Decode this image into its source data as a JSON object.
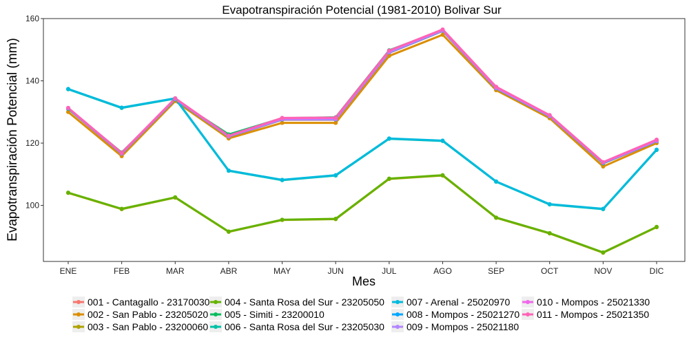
{
  "chart_data": {
    "type": "line",
    "title": "Evapotranspiración Potencial (1981-2010)  Bolivar Sur",
    "xlabel": "Mes",
    "ylabel": "Evapotranspiración Potencial  (mm)",
    "categories": [
      "ENE",
      "FEB",
      "MAR",
      "ABR",
      "MAY",
      "JUN",
      "JUL",
      "AGO",
      "SEP",
      "OCT",
      "NOV",
      "DIC"
    ],
    "ylim": [
      82,
      160
    ],
    "yticks": [
      100,
      120,
      140,
      160
    ],
    "grid": false,
    "legend_position": "bottom",
    "series": [
      {
        "name": "001 - Cantagallo - 23170030",
        "color": "#F8766D",
        "values": [
          131.0,
          116.5,
          134.0,
          122.0,
          127.5,
          127.5,
          149.0,
          156.0,
          137.5,
          128.5,
          113.5,
          120.5
        ]
      },
      {
        "name": "002 - San Pablo - 23205020",
        "color": "#DB8E00",
        "values": [
          130.0,
          115.8,
          133.5,
          121.5,
          126.5,
          126.5,
          148.0,
          154.8,
          137.0,
          128.0,
          112.5,
          120.0
        ]
      },
      {
        "name": "003 - San Pablo - 23200060",
        "color": "#AEA200",
        "values": [
          104.0,
          98.8,
          102.5,
          91.5,
          95.3,
          95.6,
          108.5,
          109.6,
          96.0,
          91.0,
          84.8,
          93.0
        ]
      },
      {
        "name": "004 - Santa Rosa del Sur - 23205050",
        "color": "#64B200",
        "values": [
          104.1,
          98.9,
          102.6,
          91.6,
          95.4,
          95.7,
          108.6,
          109.7,
          96.1,
          91.1,
          84.9,
          93.1
        ]
      },
      {
        "name": "005 - Simiti - 23200010",
        "color": "#00BD5C",
        "values": [
          131.0,
          117.0,
          134.0,
          122.8,
          128.0,
          128.3,
          149.8,
          156.3,
          138.0,
          128.8,
          113.5,
          121.0
        ]
      },
      {
        "name": "006 - Santa Rosa del Sur - 23205030",
        "color": "#00C1A7",
        "values": [
          137.3,
          131.3,
          134.3,
          111.1,
          108.1,
          109.6,
          121.4,
          120.7,
          107.6,
          100.3,
          98.8,
          117.8
        ]
      },
      {
        "name": "007 - Arenal - 25020970",
        "color": "#00BADE",
        "values": [
          137.4,
          131.4,
          134.4,
          111.2,
          108.2,
          109.7,
          121.5,
          120.8,
          107.7,
          100.4,
          98.9,
          117.9
        ]
      },
      {
        "name": "008 - Mompos - 25021270",
        "color": "#00A6FF",
        "values": [
          131.1,
          116.6,
          134.1,
          122.1,
          127.6,
          127.6,
          149.1,
          156.1,
          137.6,
          128.6,
          113.6,
          120.6
        ]
      },
      {
        "name": "009 - Mompos - 25021180",
        "color": "#B385FF",
        "values": [
          131.2,
          116.7,
          134.2,
          122.2,
          127.7,
          127.7,
          149.2,
          156.2,
          137.7,
          128.7,
          113.7,
          120.7
        ]
      },
      {
        "name": "010 - Mompos - 25021330",
        "color": "#EF67EB",
        "values": [
          131.3,
          116.8,
          134.3,
          122.3,
          127.9,
          128.0,
          149.6,
          156.4,
          137.9,
          128.9,
          113.8,
          120.9
        ]
      },
      {
        "name": "011 - Mompos - 25021350",
        "color": "#FF63B6",
        "values": [
          131.3,
          116.9,
          134.4,
          122.4,
          128.1,
          128.2,
          149.7,
          156.5,
          138.1,
          129.0,
          113.9,
          121.1
        ]
      }
    ]
  }
}
